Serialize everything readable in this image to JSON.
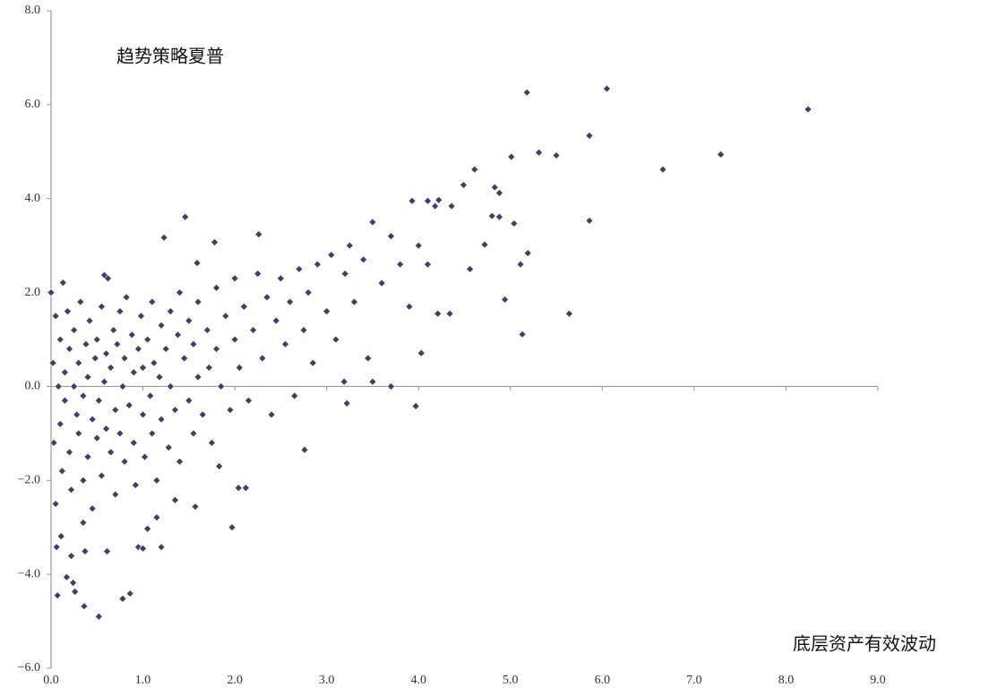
{
  "chart_data": {
    "type": "scatter",
    "ylabel": "趋势策略夏普",
    "xlabel": "底层资产有效波动",
    "color": "#3f3d6e",
    "xlim": [
      0,
      9
    ],
    "ylim": [
      -6,
      8
    ],
    "xticks": [
      {
        "value": 0,
        "label": "0.0"
      },
      {
        "value": 1,
        "label": "1.0"
      },
      {
        "value": 2,
        "label": "2.0"
      },
      {
        "value": 3,
        "label": "3.0"
      },
      {
        "value": 4,
        "label": "4.0"
      },
      {
        "value": 5,
        "label": "5.0"
      },
      {
        "value": 6,
        "label": "6.0"
      },
      {
        "value": 7,
        "label": "7.0"
      },
      {
        "value": 8,
        "label": "8.0"
      },
      {
        "value": 9,
        "label": "9.0"
      }
    ],
    "yticks": [
      {
        "value": -6,
        "label": "−6.0"
      },
      {
        "value": -4,
        "label": "−4.0"
      },
      {
        "value": -2,
        "label": "−2.0"
      },
      {
        "value": 0,
        "label": "0.0"
      },
      {
        "value": 2,
        "label": "2.0"
      },
      {
        "value": 4,
        "label": "4.0"
      },
      {
        "value": 6,
        "label": "6.0"
      },
      {
        "value": 8,
        "label": "8.0"
      }
    ],
    "x": [
      5.18,
      6.05,
      8.24,
      5.86,
      5.31,
      5.5,
      7.29,
      6.66,
      5.01,
      4.61,
      4.83,
      4.88,
      4.49,
      5.86,
      4.8,
      4.88,
      5.04,
      5.19,
      5.11,
      4.72,
      4.56,
      4.36,
      4.1,
      4.18,
      3.93,
      4.22,
      4.94,
      5.64,
      5.13,
      4.21,
      4.34,
      4.03,
      3.7,
      3.5,
      3.19,
      3.22,
      3.97,
      2.76,
      2.12,
      2.04,
      1.97,
      1.23,
      1.46,
      1.78,
      2.26,
      1.59,
      0.58,
      0.13,
      0.0,
      0.35,
      0.06,
      0.11,
      0.22,
      0.37,
      0.07,
      0.17,
      0.24,
      0.26,
      0.36,
      0.52,
      0.78,
      0.86,
      0.95,
      1.0,
      1.05,
      1.2,
      0.61,
      1.15,
      1.57,
      1.83,
      1.35,
      0.02,
      0.03,
      0.05,
      0.05,
      0.08,
      0.1,
      0.1,
      0.12,
      0.15,
      0.15,
      0.18,
      0.2,
      0.2,
      0.22,
      0.25,
      0.25,
      0.28,
      0.3,
      0.3,
      0.32,
      0.35,
      0.35,
      0.38,
      0.4,
      0.4,
      0.42,
      0.45,
      0.45,
      0.48,
      0.5,
      0.5,
      0.52,
      0.55,
      0.55,
      0.58,
      0.6,
      0.6,
      0.62,
      0.65,
      0.65,
      0.68,
      0.7,
      0.7,
      0.72,
      0.75,
      0.75,
      0.78,
      0.8,
      0.8,
      0.82,
      0.85,
      0.88,
      0.9,
      0.9,
      0.92,
      0.95,
      0.98,
      1.0,
      1.0,
      1.02,
      1.05,
      1.08,
      1.1,
      1.1,
      1.12,
      1.15,
      1.18,
      1.2,
      1.2,
      1.25,
      1.28,
      1.3,
      1.3,
      1.35,
      1.38,
      1.4,
      1.4,
      1.45,
      1.5,
      1.5,
      1.55,
      1.55,
      1.6,
      1.6,
      1.65,
      1.7,
      1.72,
      1.75,
      1.8,
      1.8,
      1.85,
      1.9,
      1.95,
      2.0,
      2.0,
      2.05,
      2.1,
      2.15,
      2.2,
      2.25,
      2.3,
      2.35,
      2.4,
      2.45,
      2.5,
      2.55,
      2.6,
      2.65,
      2.7,
      2.75,
      2.8,
      2.85,
      2.9,
      3.0,
      3.05,
      3.1,
      3.2,
      3.25,
      3.3,
      3.4,
      3.45,
      3.5,
      3.6,
      3.7,
      3.8,
      3.9,
      4.0,
      4.1
    ],
    "values": [
      6.26,
      6.34,
      5.9,
      5.34,
      4.98,
      4.92,
      4.94,
      4.62,
      4.89,
      4.62,
      4.24,
      4.12,
      4.29,
      3.53,
      3.63,
      3.61,
      3.47,
      2.84,
      2.6,
      3.02,
      2.5,
      3.84,
      3.95,
      3.84,
      3.95,
      3.97,
      1.85,
      1.55,
      1.11,
      1.55,
      1.55,
      0.71,
      0.0,
      0.1,
      0.1,
      -0.36,
      -0.42,
      -1.35,
      -2.16,
      -2.16,
      -3.0,
      3.17,
      3.61,
      3.07,
      3.24,
      2.63,
      2.37,
      2.21,
      2.0,
      -2.9,
      -3.42,
      -3.19,
      -3.61,
      -3.51,
      -4.45,
      -4.06,
      -4.18,
      -4.37,
      -4.68,
      -4.9,
      -4.52,
      -4.41,
      -3.42,
      -3.45,
      -3.03,
      -3.42,
      -3.51,
      -2.79,
      -2.56,
      -1.7,
      -2.42,
      0.5,
      -1.2,
      1.5,
      -2.5,
      0.0,
      -0.8,
      1.0,
      -1.8,
      0.3,
      -0.3,
      1.6,
      -1.4,
      0.8,
      -2.2,
      0.0,
      1.2,
      -0.6,
      -1.0,
      0.5,
      1.8,
      -2.0,
      -0.2,
      0.9,
      -1.5,
      0.2,
      1.4,
      -0.7,
      -2.6,
      0.6,
      -1.1,
      1.0,
      -0.3,
      1.7,
      -1.9,
      0.1,
      -0.9,
      0.7,
      2.3,
      -1.4,
      0.4,
      1.2,
      -0.5,
      -2.3,
      0.9,
      -1.0,
      1.6,
      0.0,
      -1.6,
      0.6,
      1.9,
      -0.4,
      1.1,
      -1.2,
      0.3,
      -2.1,
      0.8,
      1.5,
      -0.6,
      0.4,
      -1.5,
      1.0,
      -0.2,
      1.8,
      -1.0,
      0.5,
      -2.0,
      0.2,
      1.3,
      -0.7,
      0.8,
      -1.3,
      1.6,
      0.0,
      -0.5,
      1.1,
      2.0,
      -1.6,
      0.6,
      -0.3,
      1.4,
      0.9,
      -1.0,
      0.2,
      1.8,
      -0.6,
      1.2,
      0.4,
      -1.2,
      2.1,
      0.8,
      0.0,
      1.5,
      -0.5,
      1.0,
      2.3,
      0.4,
      1.7,
      -0.3,
      1.2,
      2.4,
      0.6,
      1.9,
      -0.6,
      1.4,
      2.3,
      0.9,
      1.8,
      -0.2,
      2.5,
      1.2,
      2.0,
      0.5,
      2.6,
      1.6,
      2.8,
      1.0,
      2.4,
      3.0,
      1.8,
      2.7,
      0.6,
      3.5,
      2.2,
      3.2,
      2.6,
      1.7,
      3.0,
      2.6
    ]
  }
}
